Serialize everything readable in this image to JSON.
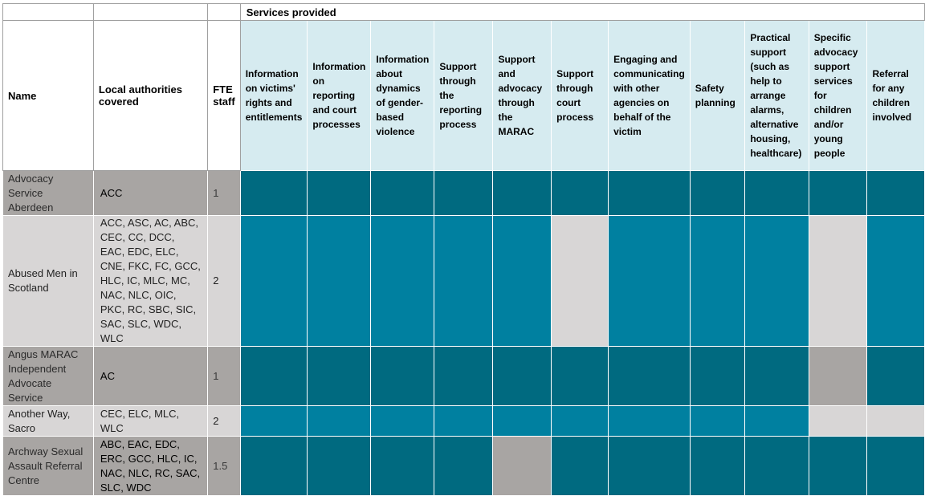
{
  "header": {
    "services_group": "Services provided",
    "columns": {
      "name": "Name",
      "la": "Local authorities covered",
      "fte": "FTE staff"
    },
    "services": [
      "Information on victims' rights and entitlements",
      "Information on reporting and court processes",
      "Information about dynamics of gender-based violence",
      "Support through the reporting process",
      "Support and advocacy through the MARAC",
      "Support through court process",
      "Engaging and communicating with other agencies on behalf of the victim",
      "Safety planning",
      "Practical support (such as help to arrange alarms, alternative housing, healthcare)",
      "Specific advocacy support services for children and/or young people",
      "Referral for any children involved"
    ]
  },
  "colors": {
    "dark_teal": "#006a80",
    "teal": "#0080a0",
    "dark_grey": "#a8a5a3",
    "light_grey": "#d8d6d6",
    "header_blue": "#d6ebf0"
  },
  "rows": [
    {
      "name": "Advocacy Service Aberdeen",
      "la": "ACC",
      "fte": "1",
      "cells": [
        "dark_teal",
        "dark_teal",
        "dark_teal",
        "dark_teal",
        "dark_teal",
        "dark_teal",
        "dark_teal",
        "dark_teal",
        "dark_teal",
        "dark_teal",
        "dark_teal"
      ]
    },
    {
      "name": "Abused Men in Scotland",
      "la": "ACC, ASC, AC, ABC, CEC, CC, DCC, EAC, EDC, ELC, CNE, FKC, FC, GCC, HLC, IC, MLC, MC, NAC, NLC, OIC, PKC, RC, SBC, SIC, SAC, SLC, WDC, WLC",
      "fte": "2",
      "cells": [
        "teal",
        "teal",
        "teal",
        "teal",
        "teal",
        "light_grey",
        "teal",
        "teal",
        "teal",
        "light_grey",
        "teal"
      ]
    },
    {
      "name": "Angus MARAC Independent Advocate Service",
      "la": "AC",
      "fte": "1",
      "cells": [
        "dark_teal",
        "dark_teal",
        "dark_teal",
        "dark_teal",
        "dark_teal",
        "dark_teal",
        "dark_teal",
        "dark_teal",
        "dark_teal",
        "dark_grey",
        "dark_teal"
      ]
    },
    {
      "name": "Another Way, Sacro",
      "la": "CEC, ELC, MLC, WLC",
      "fte": "2",
      "cells": [
        "teal",
        "teal",
        "teal",
        "teal",
        "teal",
        "teal",
        "teal",
        "teal",
        "teal",
        "light_grey",
        "light_grey"
      ]
    },
    {
      "name": "Archway Sexual Assault Referral Centre",
      "la": "ABC, EAC, EDC, ERC, GCC, HLC, IC, NAC, NLC, RC, SAC, SLC, WDC",
      "fte": "1.5",
      "cells": [
        "dark_teal",
        "dark_teal",
        "dark_teal",
        "dark_teal",
        "dark_grey",
        "dark_teal",
        "dark_teal",
        "dark_teal",
        "dark_teal",
        "dark_teal",
        "dark_teal"
      ]
    }
  ]
}
